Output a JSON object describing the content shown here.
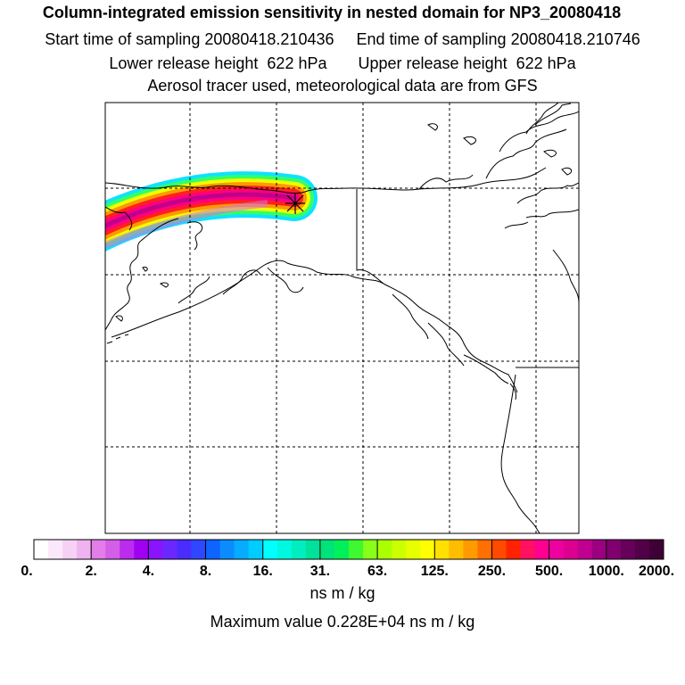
{
  "header": {
    "title": "Column-integrated emission sensitivity in nested domain for NP3_20080418",
    "sampling_line": "Start time of sampling 20080418.210436     End time of sampling 20080418.210746",
    "release_line": "Lower release height  622 hPa       Upper release height  622 hPa",
    "info_line": "Aerosol tracer used, meteorological data are from GFS"
  },
  "colorbar": {
    "tick_labels": [
      "0.",
      "2.",
      "4.",
      "8.",
      "16.",
      "31.",
      "63.",
      "125.",
      "250.",
      "500.",
      "1000.",
      "2000."
    ],
    "colors": [
      "#ffffff",
      "#fbe9fb",
      "#f6d1f6",
      "#efb3ef",
      "#e27de9",
      "#d35ee8",
      "#bb2cef",
      "#a200f2",
      "#8a14ff",
      "#6a28ff",
      "#4b2cff",
      "#2f47ff",
      "#0d64ff",
      "#0a8cff",
      "#05acff",
      "#00ccff",
      "#00ffff",
      "#00f7e0",
      "#00eebf",
      "#00e199",
      "#00e27a",
      "#00f05a",
      "#40f830",
      "#88ff18",
      "#aaff00",
      "#ccff00",
      "#e8ff00",
      "#ffff00",
      "#ffe000",
      "#ffbd00",
      "#ff9a00",
      "#ff7000",
      "#ff4a00",
      "#ff2200",
      "#ff1060",
      "#ff0090",
      "#ef00a0",
      "#dd0090",
      "#c00090",
      "#9a0080",
      "#800070",
      "#66005a",
      "#520048",
      "#3f0036"
    ]
  },
  "units_label": "ns m / kg",
  "max_value_line": "Maximum value  0.228E+04 ns m / kg",
  "release_marker_icon": "asterisk-star-icon"
}
